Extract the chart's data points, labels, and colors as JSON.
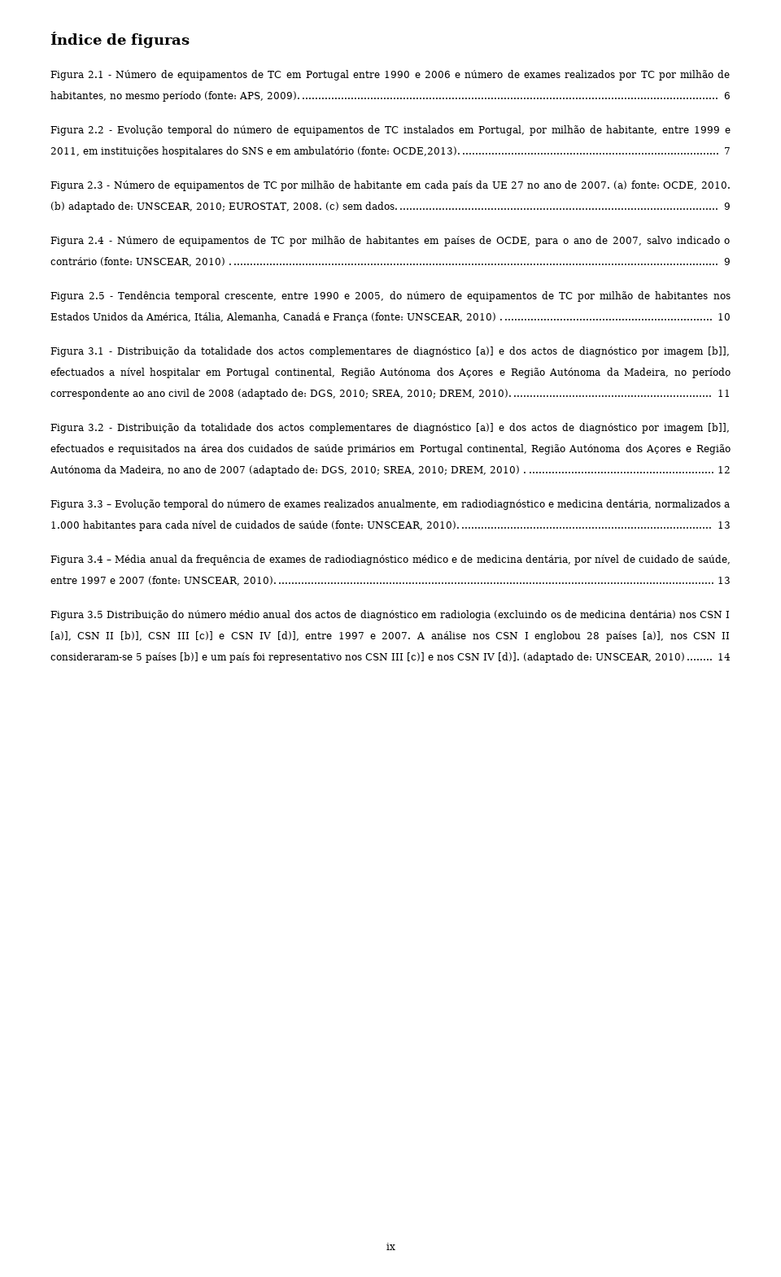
{
  "title": "Índice de figuras",
  "background_color": "#ffffff",
  "text_color": "#000000",
  "entries": [
    {
      "label": "Figura 2.1 - ",
      "text": "Número de equipamentos de TC em Portugal entre 1990 e 2006 e número de exames realizados por TC por milhão de habitantes, no mesmo período (fonte: APS, 2009).",
      "page": "6",
      "dots": "...... "
    },
    {
      "label": "Figura 2.2 - ",
      "text": "Evolução temporal do número de equipamentos de TC instalados em Portugal, por milhão de habitante, entre 1999 e 2011, em instituições hospitalares do SNS e em ambulatório (fonte: OCDE,2013).",
      "page": "7",
      "dots": "..............................................................................................................."
    },
    {
      "label": "Figura 2.3 - ",
      "text": "Número de equipamentos de TC por milhão de habitante em cada país da UE 27 no ano de 2007. (a) fonte: OCDE, 2010. (b) adaptado de: UNSCEAR, 2010; EUROSTAT, 2008. (c) sem dados.",
      "page": "9",
      "dots": "..............................................................................................................."
    },
    {
      "label": "Figura 2.4 - ",
      "text": "Número de equipamentos de TC por milhão de habitantes em países de OCDE, para o ano de 2007, salvo indicado o contrário (fonte: UNSCEAR, 2010) .",
      "page": "9",
      "dots": "..............................................................................................................."
    },
    {
      "label": "Figura 2.5 - ",
      "text": "Tendência temporal crescente, entre 1990 e 2005, do número de equipamentos de TC por milhão de habitantes nos Estados Unidos da América, Itália, Alemanha, Canadá e França (fonte: UNSCEAR, 2010) .",
      "page": "10",
      "dots": "..............................................................................................................."
    },
    {
      "label": "Figura 3.1 - ",
      "text": "Distribuição da totalidade dos actos complementares de diagnóstico [a)] e dos actos de diagnóstico por imagem [b]], efectuados a nível hospitalar em Portugal continental, Região Autónoma dos Açores e Região Autónoma da Madeira, no período correspondente ao ano civil de 2008 (adaptado de: DGS, 2010; SREA, 2010; DREM, 2010).",
      "page": "11",
      "dots": "..............................................................................................................."
    },
    {
      "label": "Figura 3.2 - ",
      "text": "Distribuição da totalidade dos actos complementares de diagnóstico [a)] e dos actos de diagnóstico por imagem [b]], efectuados e requisitados na área dos cuidados de saúde primários em Portugal continental, Região Autónoma dos Açores e Região Autónoma da Madeira, no ano de 2007 (adaptado de: DGS, 2010; SREA, 2010; DREM, 2010) .",
      "page": "12",
      "dots": "..............................................................................................................."
    },
    {
      "label": "Figura 3.3 – ",
      "text": "Evolução temporal do número de exames realizados anualmente, em radiodiagnóstico e medicina dentária, normalizados a 1.000 habitantes para cada nível de cuidados de saúde (fonte: UNSCEAR, 2010).",
      "page": "13",
      "dots": "..............................................................................................................."
    },
    {
      "label": "Figura 3.4 – ",
      "text": "Média anual da frequência de exames de radiodiagnóstico médico e de medicina dentária, por nível de cuidado de saúde, entre 1997 e 2007 (fonte: UNSCEAR, 2010).",
      "page": "13",
      "dots": "..............................................................................................................."
    },
    {
      "label": "Figura 3.5 ",
      "text": "Distribuição do número médio anual dos actos de diagnóstico em radiologia (excluindo os de medicina dentária) nos CSN I [a)], CSN II [b)], CSN III [c)] e CSN IV [d)], entre 1997 e 2007. A análise nos CSN I englobou 28 países [a)], nos CSN II consideraram-se 5 países [b)] e um país foi representativo nos CSN III [c)] e nos CSN IV [d)]. (adaptado de: UNSCEAR, 2010)",
      "page": "14",
      "dots": "..............................................................................................................."
    }
  ],
  "page_number": "ix",
  "font_size": 12,
  "title_font_size": 18
}
